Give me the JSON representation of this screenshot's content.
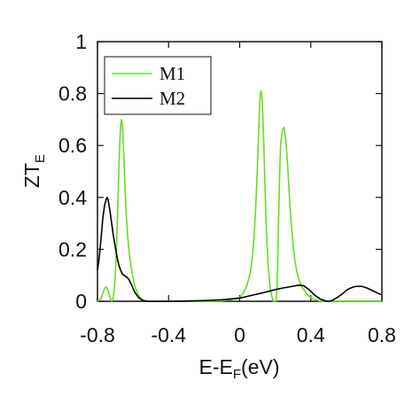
{
  "chart_data": {
    "type": "line",
    "xlabel": {
      "main": "E-E",
      "sub": "F",
      "tail": "(eV)"
    },
    "ylabel": {
      "main": "ZT",
      "sub": "E"
    },
    "xlim": [
      -0.8,
      0.8
    ],
    "ylim": [
      0,
      1
    ],
    "xticks": [
      -0.8,
      -0.4,
      0,
      0.4,
      0.8
    ],
    "xtick_labels": [
      "-0.8",
      "-0.4",
      "0",
      "0.4",
      "0.8"
    ],
    "yticks": [
      0,
      0.2,
      0.4,
      0.6,
      0.8,
      1
    ],
    "ytick_labels": [
      "0",
      "0.2",
      "0.4",
      "0.6",
      "0.8",
      "1"
    ],
    "grid": false,
    "legend_position": "top-left",
    "series": [
      {
        "name": "M1",
        "color": "#66dd22",
        "x": [
          -0.8,
          -0.78,
          -0.77,
          -0.76,
          -0.75,
          -0.74,
          -0.73,
          -0.72,
          -0.715,
          -0.71,
          -0.705,
          -0.7,
          -0.695,
          -0.69,
          -0.685,
          -0.68,
          -0.675,
          -0.67,
          -0.665,
          -0.66,
          -0.655,
          -0.65,
          -0.645,
          -0.64,
          -0.635,
          -0.63,
          -0.62,
          -0.61,
          -0.6,
          -0.59,
          -0.58,
          -0.57,
          -0.56,
          -0.55,
          -0.54,
          -0.53,
          -0.52,
          -0.4,
          -0.2,
          -0.1,
          -0.05,
          0.0,
          0.02,
          0.04,
          0.06,
          0.07,
          0.08,
          0.09,
          0.1,
          0.105,
          0.11,
          0.115,
          0.12,
          0.125,
          0.13,
          0.135,
          0.14,
          0.145,
          0.15,
          0.16,
          0.17,
          0.18,
          0.19,
          0.2,
          0.205,
          0.21,
          0.215,
          0.22,
          0.225,
          0.23,
          0.24,
          0.25,
          0.26,
          0.27,
          0.28,
          0.29,
          0.3,
          0.31,
          0.32,
          0.33,
          0.34,
          0.35,
          0.36,
          0.37,
          0.38,
          0.39,
          0.4,
          0.41,
          0.42,
          0.43,
          0.44,
          0.45,
          0.46,
          0.48,
          0.5,
          0.6,
          0.7,
          0.8
        ],
        "values": [
          0,
          0.01,
          0.03,
          0.05,
          0.055,
          0.04,
          0.015,
          0.0,
          0.005,
          0.02,
          0.05,
          0.1,
          0.17,
          0.27,
          0.38,
          0.5,
          0.6,
          0.67,
          0.7,
          0.68,
          0.62,
          0.53,
          0.44,
          0.36,
          0.3,
          0.25,
          0.18,
          0.13,
          0.09,
          0.06,
          0.04,
          0.025,
          0.015,
          0.008,
          0.004,
          0.002,
          0.0,
          0.0,
          0.0,
          0.002,
          0.006,
          0.015,
          0.03,
          0.06,
          0.11,
          0.16,
          0.24,
          0.36,
          0.52,
          0.62,
          0.72,
          0.79,
          0.81,
          0.79,
          0.72,
          0.62,
          0.5,
          0.38,
          0.28,
          0.14,
          0.06,
          0.02,
          0.0,
          0.0,
          0.0,
          0.05,
          0.18,
          0.35,
          0.5,
          0.6,
          0.66,
          0.67,
          0.62,
          0.52,
          0.4,
          0.3,
          0.22,
          0.16,
          0.12,
          0.09,
          0.07,
          0.055,
          0.045,
          0.035,
          0.027,
          0.02,
          0.015,
          0.01,
          0.007,
          0.005,
          0.003,
          0.002,
          0.001,
          0.0,
          0.0,
          0.0,
          0.0,
          0.0
        ]
      },
      {
        "name": "M2",
        "color": "#000000",
        "x": [
          -0.8,
          -0.79,
          -0.78,
          -0.77,
          -0.76,
          -0.75,
          -0.745,
          -0.74,
          -0.735,
          -0.73,
          -0.72,
          -0.71,
          -0.7,
          -0.69,
          -0.68,
          -0.67,
          -0.66,
          -0.65,
          -0.64,
          -0.63,
          -0.62,
          -0.61,
          -0.6,
          -0.59,
          -0.58,
          -0.57,
          -0.56,
          -0.55,
          -0.54,
          -0.53,
          -0.52,
          -0.5,
          -0.45,
          -0.4,
          -0.3,
          -0.2,
          -0.1,
          0.0,
          0.05,
          0.1,
          0.15,
          0.2,
          0.25,
          0.3,
          0.33,
          0.36,
          0.39,
          0.42,
          0.45,
          0.48,
          0.5,
          0.52,
          0.55,
          0.58,
          0.6,
          0.62,
          0.65,
          0.68,
          0.7,
          0.72,
          0.75,
          0.78,
          0.8
        ],
        "values": [
          0.12,
          0.17,
          0.24,
          0.32,
          0.37,
          0.395,
          0.4,
          0.39,
          0.37,
          0.35,
          0.3,
          0.25,
          0.21,
          0.17,
          0.14,
          0.12,
          0.105,
          0.1,
          0.095,
          0.09,
          0.08,
          0.065,
          0.05,
          0.035,
          0.025,
          0.015,
          0.01,
          0.005,
          0.002,
          0.001,
          0.0,
          0.0,
          0.0,
          0.0,
          0.001,
          0.003,
          0.006,
          0.012,
          0.02,
          0.028,
          0.036,
          0.045,
          0.052,
          0.058,
          0.062,
          0.06,
          0.045,
          0.025,
          0.01,
          0.002,
          0.0,
          0.003,
          0.015,
          0.03,
          0.042,
          0.05,
          0.057,
          0.058,
          0.055,
          0.05,
          0.04,
          0.03,
          0.025
        ]
      }
    ]
  }
}
